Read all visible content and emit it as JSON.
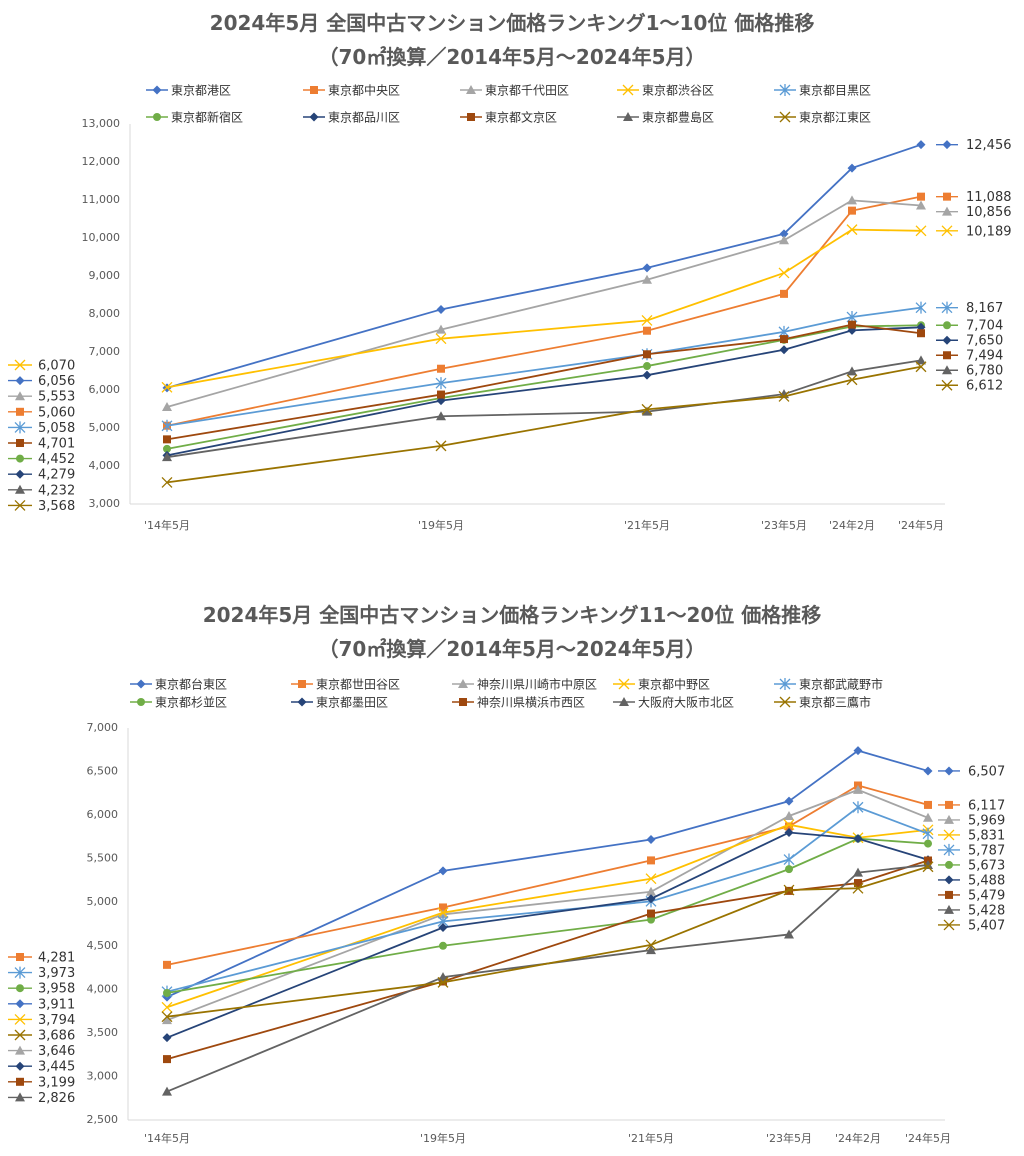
{
  "chart_data": [
    {
      "type": "line",
      "title": "2024年5月 全国中古マンション価格ランキング1～10位 価格推移",
      "subtitle": "（70㎡換算／2014年5月～2024年5月）",
      "categories": [
        "'14年5月",
        "'19年5月",
        "'21年5月",
        "'23年5月",
        "'24年2月",
        "'24年5月"
      ],
      "ylim": [
        3000,
        13000
      ],
      "yticks": [
        "3,000",
        "4,000",
        "5,000",
        "6,000",
        "7,000",
        "8,000",
        "9,000",
        "10,000",
        "11,000",
        "12,000",
        "13,000"
      ],
      "grid": false,
      "legend": "top",
      "series": [
        {
          "name": "東京都港区",
          "color": "#4472C4",
          "marker": "diamond",
          "values": [
            6056,
            8120,
            9215,
            10110,
            11840,
            12456
          ],
          "start_label": "6,056",
          "end_label": "12,456"
        },
        {
          "name": "東京都中央区",
          "color": "#ED7D31",
          "marker": "square",
          "values": [
            5060,
            6560,
            7560,
            8530,
            10720,
            11088
          ],
          "start_label": "5,060",
          "end_label": "11,088"
        },
        {
          "name": "東京都千代田区",
          "color": "#A5A5A5",
          "marker": "triangle",
          "values": [
            5553,
            7590,
            8900,
            9940,
            10990,
            10856
          ],
          "start_label": "5,553",
          "end_label": "10,856"
        },
        {
          "name": "東京都渋谷区",
          "color": "#FFC000",
          "marker": "x",
          "values": [
            6070,
            7350,
            7830,
            9080,
            10220,
            10189
          ],
          "start_label": "6,070",
          "end_label": "10,189"
        },
        {
          "name": "東京都目黒区",
          "color": "#5B9BD5",
          "marker": "star",
          "values": [
            5058,
            6180,
            6940,
            7530,
            7920,
            8167
          ],
          "start_label": "5,058",
          "end_label": "8,167"
        },
        {
          "name": "東京都新宿区",
          "color": "#70AD47",
          "marker": "circle",
          "values": [
            4452,
            5790,
            6630,
            7320,
            7670,
            7704
          ],
          "start_label": "4,452",
          "end_label": "7,704"
        },
        {
          "name": "東京都品川区",
          "color": "#264478",
          "marker": "diamond",
          "values": [
            4279,
            5720,
            6390,
            7060,
            7570,
            7650
          ],
          "start_label": "4,279",
          "end_label": "7,650"
        },
        {
          "name": "東京都文京区",
          "color": "#9E480E",
          "marker": "square",
          "values": [
            4701,
            5880,
            6940,
            7340,
            7720,
            7494
          ],
          "start_label": "4,701",
          "end_label": "7,494"
        },
        {
          "name": "東京都豊島区",
          "color": "#636363",
          "marker": "triangle",
          "values": [
            4232,
            5310,
            5430,
            5890,
            6490,
            6780
          ],
          "start_label": "4,232",
          "end_label": "6,780"
        },
        {
          "name": "東京都江東区",
          "color": "#997300",
          "marker": "x",
          "values": [
            3568,
            4530,
            5490,
            5830,
            6270,
            6612
          ],
          "start_label": "3,568",
          "end_label": "6,612"
        }
      ]
    },
    {
      "type": "line",
      "title": "2024年5月 全国中古マンション価格ランキング11～20位 価格推移",
      "subtitle": "（70㎡換算／2014年5月～2024年5月）",
      "categories": [
        "'14年5月",
        "'19年5月",
        "'21年5月",
        "'23年5月",
        "'24年2月",
        "'24年5月"
      ],
      "ylim": [
        2500,
        7000
      ],
      "yticks": [
        "2,500",
        "3,000",
        "3,500",
        "4,000",
        "4,500",
        "5,000",
        "5,500",
        "6,000",
        "6,500",
        "7,000"
      ],
      "grid": false,
      "legend": "top",
      "series": [
        {
          "name": "東京都台東区",
          "color": "#4472C4",
          "marker": "diamond",
          "values": [
            3911,
            5360,
            5720,
            6160,
            6740,
            6507
          ],
          "start_label": "3,911",
          "end_label": "6,507"
        },
        {
          "name": "東京都世田谷区",
          "color": "#ED7D31",
          "marker": "square",
          "values": [
            4281,
            4940,
            5480,
            5870,
            6340,
            6117
          ],
          "start_label": "4,281",
          "end_label": "6,117"
        },
        {
          "name": "神奈川県川崎市中原区",
          "color": "#A5A5A5",
          "marker": "triangle",
          "values": [
            3646,
            4860,
            5120,
            5990,
            6290,
            5969
          ],
          "start_label": "3,646",
          "end_label": "5,969"
        },
        {
          "name": "東京都中野区",
          "color": "#FFC000",
          "marker": "x",
          "values": [
            3794,
            4880,
            5270,
            5890,
            5740,
            5831
          ],
          "start_label": "3,794",
          "end_label": "5,831"
        },
        {
          "name": "東京都武蔵野市",
          "color": "#5B9BD5",
          "marker": "star",
          "values": [
            3973,
            4780,
            5010,
            5490,
            6090,
            5787
          ],
          "start_label": "3,973",
          "end_label": "5,787"
        },
        {
          "name": "東京都杉並区",
          "color": "#70AD47",
          "marker": "circle",
          "values": [
            3958,
            4500,
            4800,
            5380,
            5730,
            5673
          ],
          "start_label": "3,958",
          "end_label": "5,673"
        },
        {
          "name": "東京都墨田区",
          "color": "#264478",
          "marker": "diamond",
          "values": [
            3445,
            4710,
            5040,
            5800,
            5730,
            5488
          ],
          "start_label": "3,445",
          "end_label": "5,488"
        },
        {
          "name": "神奈川県横浜市西区",
          "color": "#9E480E",
          "marker": "square",
          "values": [
            3199,
            4090,
            4870,
            5130,
            5220,
            5479
          ],
          "start_label": "3,199",
          "end_label": "5,479"
        },
        {
          "name": "大阪府大阪市北区",
          "color": "#636363",
          "marker": "triangle",
          "values": [
            2826,
            4140,
            4450,
            4630,
            5340,
            5428
          ],
          "start_label": "2,826",
          "end_label": "5,428"
        },
        {
          "name": "東京都三鷹市",
          "color": "#997300",
          "marker": "x",
          "values": [
            3686,
            4080,
            4510,
            5140,
            5160,
            5407
          ],
          "start_label": "3,686",
          "end_label": "5,407"
        }
      ]
    }
  ]
}
